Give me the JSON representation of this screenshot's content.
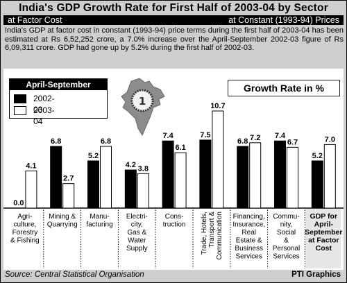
{
  "header": {
    "title": "India's GDP Growth Rate for First Half of 2003-04 by Sector",
    "subtitle_left": "at Factor Cost",
    "subtitle_right": "at Constant (1993-94) Prices",
    "description": "India's GDP at factor cost in constant (1993-94) price terms during the first half of 2003-04 has been estimated at Rs 6,52,252 crore, a 7.0% increase over the April-September 2002-03 figure of Rs 6,09,311 crore. GDP had gone up by 5.2% during the first half of 2002-03."
  },
  "legend": {
    "title": "April-September",
    "items": [
      "2002-03",
      "2003-04"
    ]
  },
  "growth_label": "Growth Rate in %",
  "footer": {
    "source": "Source: Central Statistical Organisation",
    "credit": "PTI Graphics"
  },
  "colors": {
    "series_2002": "#000000",
    "series_2003": "#ffffff",
    "background": "#cfcfcf"
  },
  "chart_data": {
    "type": "bar",
    "categories": [
      [
        "Agri-",
        "culture,",
        "Forestry",
        "& Fishing"
      ],
      [
        "Mining &",
        "Quarrying"
      ],
      [
        "Manu-",
        "facturing"
      ],
      [
        "Electri-",
        "city,",
        "Gas &",
        "Water",
        "Supply"
      ],
      [
        "Cons-",
        "truction"
      ],
      [
        "Trade, Hotels,",
        "Transport &",
        "Communication"
      ],
      [
        "Financing,",
        "Insurance,",
        "Real",
        "Estate &",
        "Business",
        "Services"
      ],
      [
        "Commu-",
        "nity,",
        "Social",
        "&",
        "Personal",
        "Services"
      ],
      [
        "GDP for",
        "April-",
        "September",
        "at Factor",
        "Cost"
      ]
    ],
    "series": [
      {
        "name": "2002-03",
        "values": [
          0.0,
          6.8,
          5.2,
          4.2,
          7.4,
          7.5,
          6.8,
          7.4,
          5.2
        ]
      },
      {
        "name": "2003-04",
        "values": [
          4.1,
          2.7,
          6.8,
          3.8,
          6.1,
          10.7,
          7.2,
          6.7,
          7.0
        ]
      }
    ],
    "value_labels": [
      [
        "0.0",
        "6.8",
        "5.2",
        "4.2",
        "7.4",
        "7.5",
        "6.8",
        "7.4",
        "5.2"
      ],
      [
        "4.1",
        "2.7",
        "6.8",
        "3.8",
        "6.1",
        "10.7",
        "7.2",
        "6.7",
        "7.0"
      ]
    ],
    "ylim": [
      0,
      12
    ],
    "legend_position": "top-left",
    "grid": false
  }
}
